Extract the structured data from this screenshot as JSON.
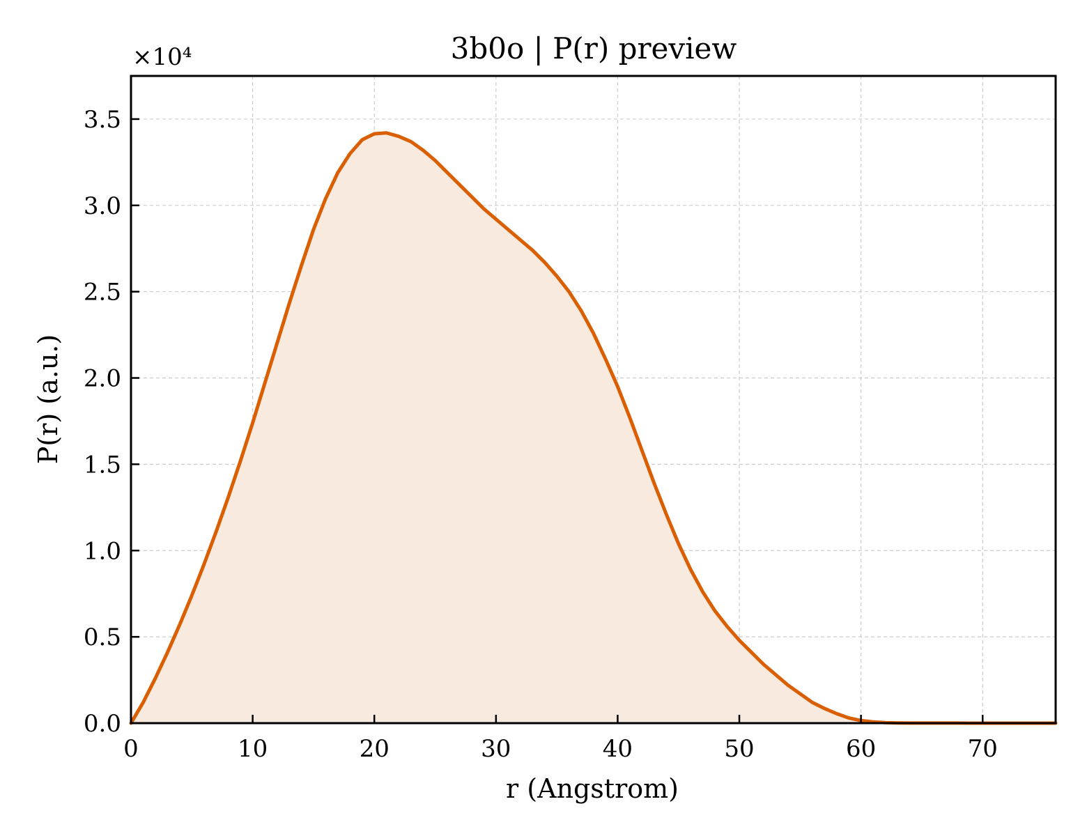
{
  "chart_data": {
    "type": "area",
    "title": "3b0o | P(r) preview",
    "xlabel": "r (Angstrom)",
    "ylabel": "P(r) (a.u.)",
    "y_multiplier_label": "×10⁴",
    "y_multiplier": 10000,
    "xlim": [
      0,
      76
    ],
    "ylim": [
      0,
      3.75
    ],
    "xticks": [
      0,
      10,
      20,
      30,
      40,
      50,
      60,
      70
    ],
    "xtick_labels": [
      "0",
      "10",
      "20",
      "30",
      "40",
      "50",
      "60",
      "70"
    ],
    "yticks": [
      0,
      0.5,
      1.0,
      1.5,
      2.0,
      2.5,
      3.0,
      3.5
    ],
    "ytick_labels": [
      "0.0",
      "0.5",
      "1.0",
      "1.5",
      "2.0",
      "2.5",
      "3.0",
      "3.5"
    ],
    "grid": true,
    "line_color": "#d95f02",
    "fill_color": "#f8eadf",
    "series": [
      {
        "x": [
          0,
          1,
          2,
          3,
          4,
          5,
          6,
          7,
          8,
          9,
          10,
          11,
          12,
          13,
          14,
          15,
          16,
          17,
          18,
          19,
          20,
          21,
          22,
          23,
          24,
          25,
          26,
          27,
          28,
          29,
          30,
          31,
          32,
          33,
          34,
          35,
          36,
          37,
          38,
          39,
          40,
          41,
          42,
          43,
          44,
          45,
          46,
          47,
          48,
          49,
          50,
          51,
          52,
          53,
          54,
          55,
          56,
          57,
          58,
          59,
          60,
          61,
          62,
          63,
          64,
          65,
          66,
          67,
          68,
          69,
          70,
          71,
          72,
          73,
          74,
          75,
          76
        ],
        "values": [
          0.0,
          0.12,
          0.26,
          0.41,
          0.57,
          0.74,
          0.92,
          1.11,
          1.31,
          1.52,
          1.74,
          1.97,
          2.2,
          2.43,
          2.65,
          2.86,
          3.04,
          3.19,
          3.3,
          3.38,
          3.415,
          3.42,
          3.4,
          3.37,
          3.32,
          3.26,
          3.19,
          3.12,
          3.05,
          2.98,
          2.92,
          2.86,
          2.8,
          2.74,
          2.67,
          2.59,
          2.5,
          2.39,
          2.26,
          2.11,
          1.95,
          1.77,
          1.58,
          1.39,
          1.21,
          1.04,
          0.89,
          0.76,
          0.65,
          0.56,
          0.48,
          0.41,
          0.34,
          0.28,
          0.22,
          0.17,
          0.12,
          0.085,
          0.055,
          0.03,
          0.015,
          0.007,
          0.003,
          0.001,
          0.0005,
          0.0005,
          0.0005,
          0.0004,
          0.0003,
          0.0002,
          0.0002,
          0.0002,
          0.0002,
          0.0002,
          0.0002,
          0.0002,
          0.0002
        ]
      }
    ]
  }
}
